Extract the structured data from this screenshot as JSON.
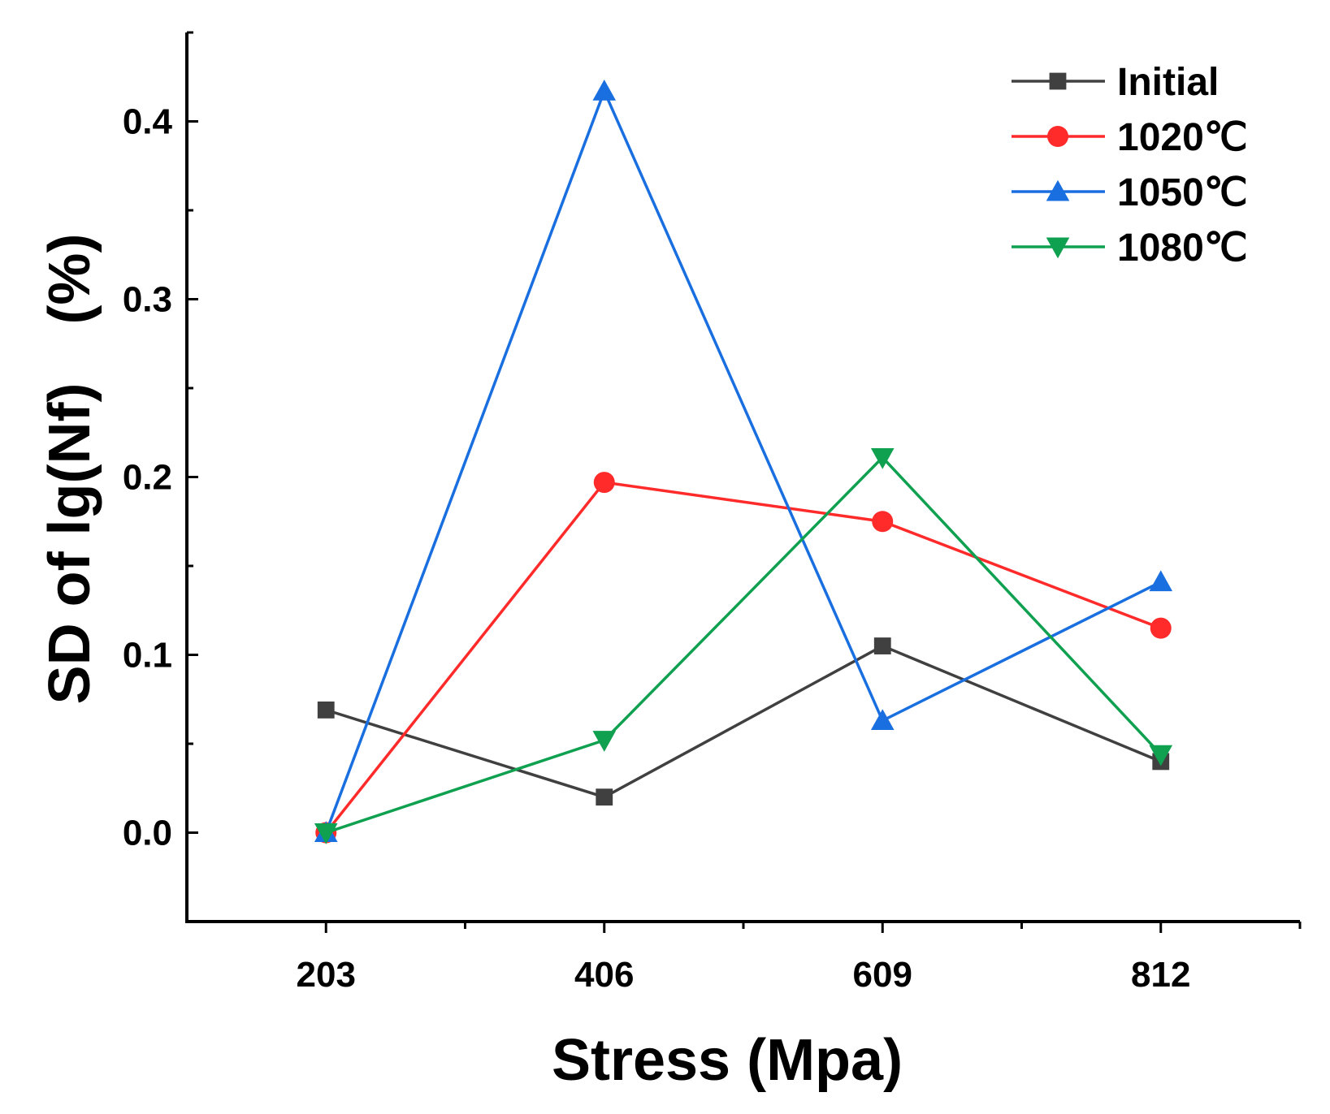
{
  "chart_data": {
    "type": "line",
    "categories": [
      "203",
      "406",
      "609",
      "812"
    ],
    "x": [
      203,
      406,
      609,
      812
    ],
    "xlabel": "Stress (Mpa)",
    "ylabel": "SD of lg(Nf)　(%)",
    "ylim": [
      -0.05,
      0.45
    ],
    "yticks": [
      0.0,
      0.1,
      0.2,
      0.3,
      0.4
    ],
    "ytick_labels": [
      "0.0",
      "0.1",
      "0.2",
      "0.3",
      "0.4"
    ],
    "grid": false,
    "legend_position": "top-right",
    "series": [
      {
        "name": "Initial",
        "color": "#404040",
        "marker": "square",
        "values": [
          0.069,
          0.02,
          0.105,
          0.04
        ]
      },
      {
        "name": "1020℃",
        "color": "#ff2a2a",
        "marker": "circle",
        "values": [
          0.0,
          0.197,
          0.175,
          0.115
        ]
      },
      {
        "name": "1050℃",
        "color": "#1a6fe0",
        "marker": "triangle-up",
        "values": [
          0.0,
          0.417,
          0.063,
          0.141
        ]
      },
      {
        "name": "1080℃",
        "color": "#0fa050",
        "marker": "triangle-down",
        "values": [
          0.0,
          0.052,
          0.211,
          0.044
        ]
      }
    ]
  }
}
